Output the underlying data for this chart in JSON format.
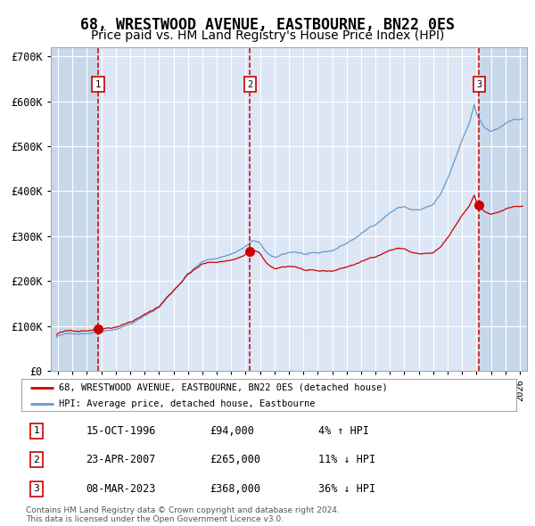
{
  "title": "68, WRESTWOOD AVENUE, EASTBOURNE, BN22 0ES",
  "subtitle": "Price paid vs. HM Land Registry's House Price Index (HPI)",
  "title_fontsize": 12,
  "subtitle_fontsize": 10,
  "ylim": [
    0,
    720000
  ],
  "yticks": [
    0,
    100000,
    200000,
    300000,
    400000,
    500000,
    600000,
    700000
  ],
  "ytick_labels": [
    "£0",
    "£100K",
    "£200K",
    "£300K",
    "£400K",
    "£500K",
    "£600K",
    "£700K"
  ],
  "xlim_start": 1993.5,
  "xlim_end": 2026.5,
  "hpi_color": "#6699cc",
  "price_color": "#cc0000",
  "dot_color": "#cc0000",
  "vline_color": "#cc0000",
  "bg_color": "#dce6f5",
  "hatch_color": "#c8d8eb",
  "grid_color": "#ffffff",
  "purchases": [
    {
      "date_num": 1996.79,
      "price": 94000,
      "label": "1"
    },
    {
      "date_num": 2007.31,
      "price": 265000,
      "label": "2"
    },
    {
      "date_num": 2023.18,
      "price": 368000,
      "label": "3"
    }
  ],
  "legend_entries": [
    {
      "color": "#cc0000",
      "label": "68, WRESTWOOD AVENUE, EASTBOURNE, BN22 0ES (detached house)"
    },
    {
      "color": "#6699cc",
      "label": "HPI: Average price, detached house, Eastbourne"
    }
  ],
  "table_data": [
    {
      "num": "1",
      "date": "15-OCT-1996",
      "price": "£94,000",
      "hpi": "4% ↑ HPI"
    },
    {
      "num": "2",
      "date": "23-APR-2007",
      "price": "£265,000",
      "hpi": "11% ↓ HPI"
    },
    {
      "num": "3",
      "date": "08-MAR-2023",
      "price": "£368,000",
      "hpi": "36% ↓ HPI"
    }
  ],
  "footer": "Contains HM Land Registry data © Crown copyright and database right 2024.\nThis data is licensed under the Open Government Licence v3.0."
}
